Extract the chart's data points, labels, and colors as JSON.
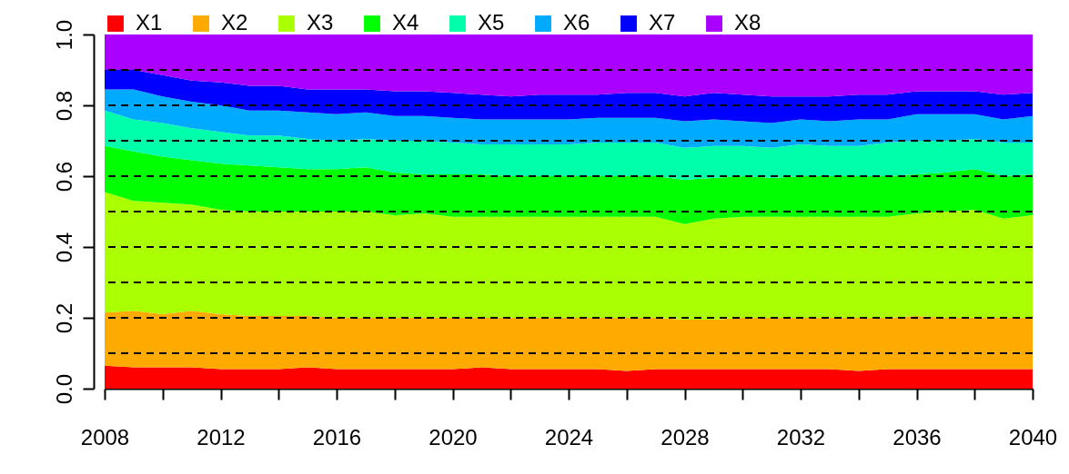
{
  "chart_data": {
    "type": "area",
    "stacked": true,
    "x": [
      2008,
      2009,
      2010,
      2011,
      2012,
      2013,
      2014,
      2015,
      2016,
      2017,
      2018,
      2019,
      2020,
      2021,
      2022,
      2023,
      2024,
      2025,
      2026,
      2027,
      2028,
      2029,
      2030,
      2031,
      2032,
      2033,
      2034,
      2035,
      2036,
      2037,
      2038,
      2039,
      2040
    ],
    "series": [
      {
        "name": "X1",
        "color": "#ff0000",
        "values": [
          0.065,
          0.06,
          0.06,
          0.06,
          0.055,
          0.055,
          0.055,
          0.06,
          0.055,
          0.055,
          0.055,
          0.055,
          0.055,
          0.06,
          0.055,
          0.055,
          0.055,
          0.055,
          0.05,
          0.055,
          0.055,
          0.055,
          0.055,
          0.055,
          0.055,
          0.055,
          0.05,
          0.055,
          0.055,
          0.055,
          0.055,
          0.055,
          0.055
        ]
      },
      {
        "name": "X2",
        "color": "#ffaa00",
        "values": [
          0.15,
          0.16,
          0.15,
          0.16,
          0.155,
          0.15,
          0.15,
          0.145,
          0.145,
          0.145,
          0.145,
          0.145,
          0.145,
          0.14,
          0.145,
          0.145,
          0.145,
          0.145,
          0.15,
          0.145,
          0.14,
          0.14,
          0.145,
          0.145,
          0.145,
          0.145,
          0.15,
          0.145,
          0.15,
          0.145,
          0.145,
          0.145,
          0.145
        ]
      },
      {
        "name": "X3",
        "color": "#aaff00",
        "values": [
          0.34,
          0.31,
          0.315,
          0.3,
          0.295,
          0.295,
          0.295,
          0.295,
          0.3,
          0.3,
          0.29,
          0.295,
          0.285,
          0.285,
          0.285,
          0.285,
          0.285,
          0.285,
          0.285,
          0.285,
          0.27,
          0.285,
          0.285,
          0.285,
          0.285,
          0.285,
          0.285,
          0.285,
          0.29,
          0.3,
          0.305,
          0.28,
          0.29
        ]
      },
      {
        "name": "X4",
        "color": "#00ff00",
        "values": [
          0.13,
          0.14,
          0.13,
          0.125,
          0.13,
          0.13,
          0.125,
          0.12,
          0.12,
          0.125,
          0.12,
          0.11,
          0.12,
          0.12,
          0.115,
          0.115,
          0.115,
          0.115,
          0.115,
          0.115,
          0.125,
          0.115,
          0.115,
          0.11,
          0.115,
          0.115,
          0.115,
          0.115,
          0.11,
          0.11,
          0.115,
          0.12,
          0.115
        ]
      },
      {
        "name": "X5",
        "color": "#00ffaa",
        "values": [
          0.1,
          0.09,
          0.095,
          0.09,
          0.09,
          0.085,
          0.09,
          0.085,
          0.08,
          0.08,
          0.09,
          0.095,
          0.09,
          0.085,
          0.09,
          0.09,
          0.09,
          0.095,
          0.095,
          0.095,
          0.09,
          0.09,
          0.085,
          0.085,
          0.09,
          0.085,
          0.085,
          0.095,
          0.095,
          0.09,
          0.085,
          0.095,
          0.09
        ]
      },
      {
        "name": "X6",
        "color": "#00aaff",
        "values": [
          0.06,
          0.085,
          0.075,
          0.075,
          0.075,
          0.07,
          0.07,
          0.075,
          0.075,
          0.075,
          0.07,
          0.07,
          0.07,
          0.07,
          0.07,
          0.07,
          0.07,
          0.07,
          0.07,
          0.07,
          0.075,
          0.075,
          0.07,
          0.07,
          0.07,
          0.07,
          0.075,
          0.065,
          0.075,
          0.075,
          0.07,
          0.065,
          0.075
        ]
      },
      {
        "name": "X7",
        "color": "#0000ff",
        "values": [
          0.055,
          0.055,
          0.06,
          0.06,
          0.065,
          0.07,
          0.07,
          0.065,
          0.07,
          0.065,
          0.07,
          0.07,
          0.07,
          0.07,
          0.065,
          0.07,
          0.07,
          0.065,
          0.07,
          0.07,
          0.07,
          0.075,
          0.075,
          0.075,
          0.065,
          0.07,
          0.07,
          0.07,
          0.065,
          0.065,
          0.065,
          0.07,
          0.065
        ]
      },
      {
        "name": "X8",
        "color": "#aa00ff",
        "values": [
          0.1,
          0.1,
          0.115,
          0.13,
          0.135,
          0.145,
          0.145,
          0.155,
          0.155,
          0.155,
          0.16,
          0.16,
          0.165,
          0.17,
          0.175,
          0.17,
          0.17,
          0.17,
          0.165,
          0.165,
          0.175,
          0.165,
          0.17,
          0.175,
          0.175,
          0.175,
          0.17,
          0.17,
          0.16,
          0.16,
          0.16,
          0.17,
          0.165
        ]
      }
    ],
    "xlim": [
      2008,
      2040
    ],
    "xticks": [
      2008,
      {
        "value": 2010,
        "label": null
      },
      2012,
      {
        "value": 2014,
        "label": null
      },
      2016,
      {
        "value": 2018,
        "label": null
      },
      2020,
      {
        "value": 2022,
        "label": null
      },
      2024,
      {
        "value": 2026,
        "label": null
      },
      2028,
      {
        "value": 2030,
        "label": null
      },
      2032,
      {
        "value": 2034,
        "label": null
      },
      2036,
      {
        "value": 2038,
        "label": null
      },
      2040
    ],
    "ylim": [
      0,
      1
    ],
    "yticks": [
      {
        "value": 0,
        "label": "0.0"
      },
      {
        "value": 0.2,
        "label": "0.2"
      },
      {
        "value": 0.4,
        "label": "0.4"
      },
      {
        "value": 0.6,
        "label": "0.6"
      },
      {
        "value": 0.8,
        "label": "0.8"
      },
      {
        "value": 1,
        "label": "1.0"
      }
    ],
    "ref_lines": [
      {
        "axis": "y",
        "value": 0.1,
        "color": "#000000",
        "line_style": "dashed"
      },
      {
        "axis": "y",
        "value": 0.2,
        "color": "#000000",
        "line_style": "dashed"
      },
      {
        "axis": "y",
        "value": 0.3,
        "color": "#000000",
        "line_style": "dashed"
      },
      {
        "axis": "y",
        "value": 0.4,
        "color": "#000000",
        "line_style": "dashed"
      },
      {
        "axis": "y",
        "value": 0.5,
        "color": "#000000",
        "line_style": "dashed"
      },
      {
        "axis": "y",
        "value": 0.6,
        "color": "#000000",
        "line_style": "dashed"
      },
      {
        "axis": "y",
        "value": 0.7,
        "color": "#000000",
        "line_style": "dashed"
      },
      {
        "axis": "y",
        "value": 0.8,
        "color": "#000000",
        "line_style": "dashed"
      },
      {
        "axis": "y",
        "value": 0.9,
        "color": "#000000",
        "line_style": "dashed"
      }
    ],
    "legend": "top"
  }
}
